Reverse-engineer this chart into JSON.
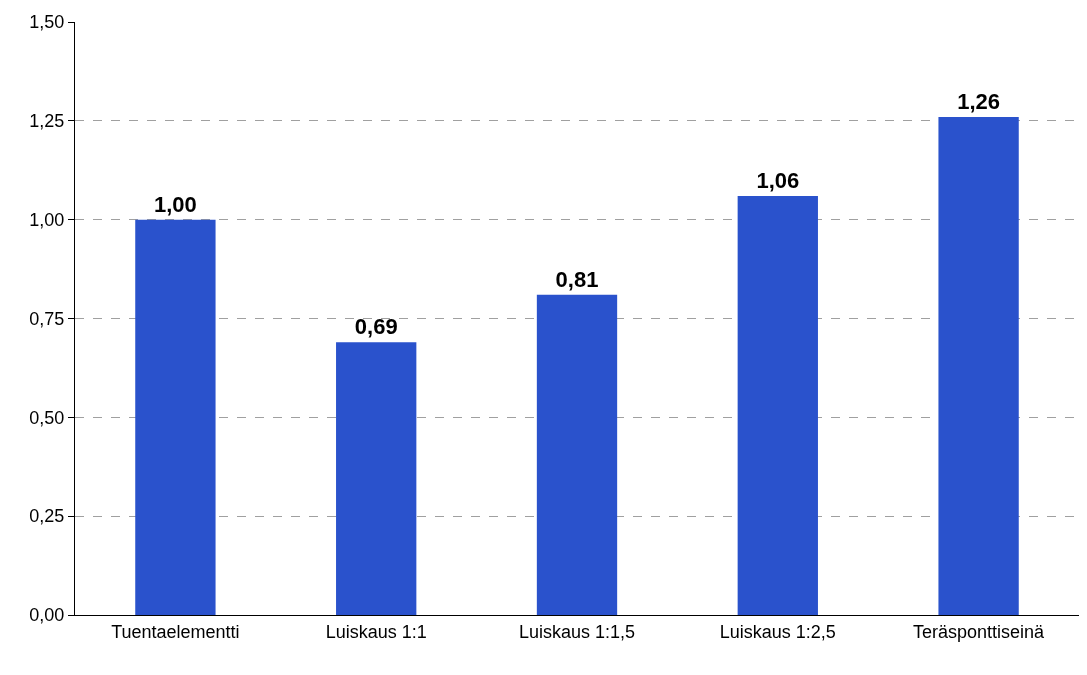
{
  "chart_data": {
    "type": "bar",
    "categories": [
      "Tuentaelementti",
      "Luiskaus 1:1",
      "Luiskaus 1:1,5",
      "Luiskaus 1:2,5",
      "Teräsponttiseinä"
    ],
    "values": [
      1.0,
      0.69,
      0.81,
      1.06,
      1.26
    ],
    "value_labels": [
      "1,00",
      "0,69",
      "0,81",
      "1,06",
      "1,26"
    ],
    "color": "#2a52cc",
    "ylim": [
      0,
      1.5
    ],
    "yticks": [
      {
        "value": 0,
        "label": "0,00"
      },
      {
        "value": 0.25,
        "label": "0,25"
      },
      {
        "value": 0.5,
        "label": "0,50"
      },
      {
        "value": 0.75,
        "label": "0,75"
      },
      {
        "value": 1.0,
        "label": "1,00"
      },
      {
        "value": 1.25,
        "label": "1,25"
      },
      {
        "value": 1.5,
        "label": "1,50"
      }
    ],
    "grid": "y",
    "legend": false
  }
}
